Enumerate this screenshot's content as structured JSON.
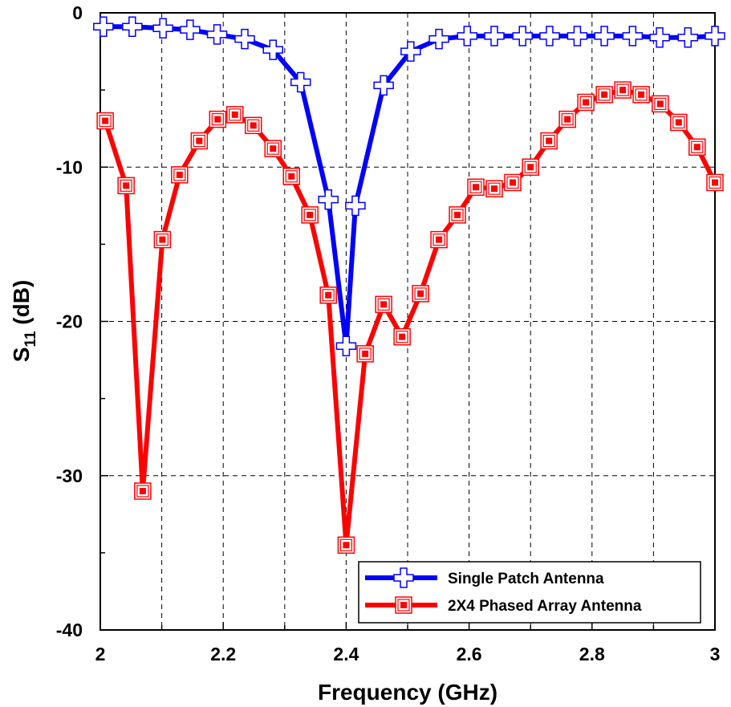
{
  "chart_data": {
    "type": "line",
    "xlabel": "Frequency (GHz)",
    "ylabel": [
      "S",
      "11",
      " (dB)"
    ],
    "xlim": [
      2,
      3
    ],
    "ylim": [
      -40,
      0
    ],
    "xticks": [
      2,
      2.2,
      2.4,
      2.6,
      2.8,
      3
    ],
    "yticks": [
      0,
      -10,
      -20,
      -30,
      -40
    ],
    "grid": true,
    "legend": "lower right",
    "series": [
      {
        "name": "Single Patch Antenna",
        "color": "#0000ff",
        "marker": "plus",
        "x": [
          2.005,
          2.052,
          2.102,
          2.146,
          2.19,
          2.235,
          2.281,
          2.326,
          2.371,
          2.4,
          2.415,
          2.461,
          2.505,
          2.551,
          2.597,
          2.641,
          2.687,
          2.731,
          2.776,
          2.82,
          2.866,
          2.91,
          2.956,
          3.0
        ],
        "values": [
          -0.9,
          -0.9,
          -1.0,
          -1.1,
          -1.4,
          -1.7,
          -2.4,
          -4.5,
          -12.1,
          -21.6,
          -12.5,
          -4.7,
          -2.5,
          -1.7,
          -1.5,
          -1.5,
          -1.5,
          -1.5,
          -1.5,
          -1.5,
          -1.5,
          -1.6,
          -1.6,
          -1.5
        ]
      },
      {
        "name": "2X4 Phased Array Antenna",
        "color": "#ff0000",
        "marker": "square",
        "x": [
          2.008,
          2.042,
          2.069,
          2.101,
          2.129,
          2.161,
          2.191,
          2.219,
          2.249,
          2.281,
          2.311,
          2.341,
          2.371,
          2.4,
          2.431,
          2.461,
          2.491,
          2.521,
          2.551,
          2.581,
          2.611,
          2.641,
          2.671,
          2.7,
          2.73,
          2.76,
          2.79,
          2.82,
          2.85,
          2.88,
          2.911,
          2.941,
          2.971,
          3.0
        ],
        "values": [
          -7.0,
          -11.2,
          -31.0,
          -14.7,
          -10.5,
          -8.3,
          -6.9,
          -6.6,
          -7.3,
          -8.8,
          -10.6,
          -13.1,
          -18.3,
          -34.5,
          -22.1,
          -18.9,
          -21.0,
          -18.2,
          -14.7,
          -13.1,
          -11.3,
          -11.4,
          -11.0,
          -10.0,
          -8.3,
          -6.9,
          -5.8,
          -5.3,
          -5.0,
          -5.3,
          -5.9,
          -7.1,
          -8.7,
          -11.0
        ]
      }
    ]
  }
}
